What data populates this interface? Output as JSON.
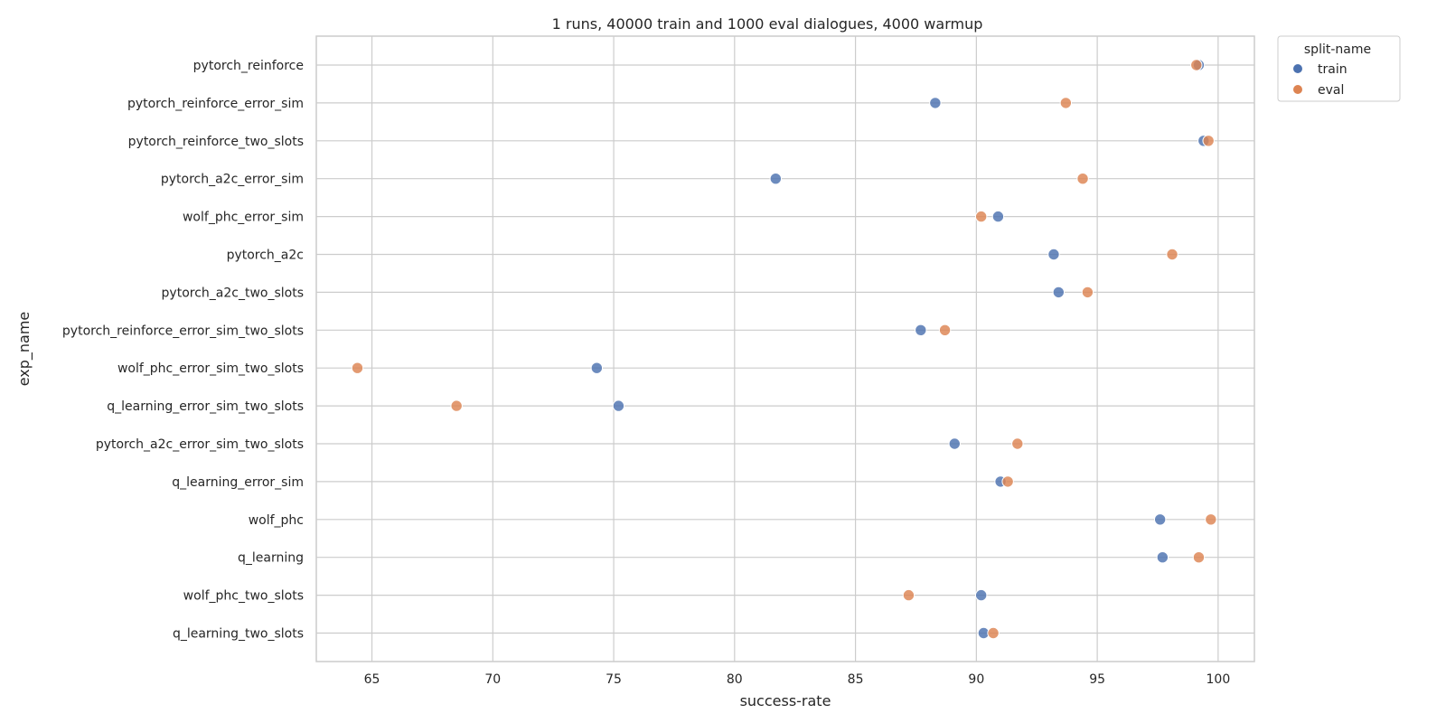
{
  "chart_data": {
    "type": "scatter",
    "title": "1 runs, 40000 train and 1000 eval dialogues, 4000 warmup",
    "xlabel": "success-rate",
    "ylabel": "exp_name",
    "xlim": [
      62.7,
      101.5
    ],
    "xticks": [
      65,
      70,
      75,
      80,
      85,
      90,
      95,
      100
    ],
    "grid": true,
    "legend": {
      "title": "split-name",
      "placement": "outside-top-right"
    },
    "categories": [
      "pytorch_reinforce",
      "pytorch_reinforce_error_sim",
      "pytorch_reinforce_two_slots",
      "pytorch_a2c_error_sim",
      "wolf_phc_error_sim",
      "pytorch_a2c",
      "pytorch_a2c_two_slots",
      "pytorch_reinforce_error_sim_two_slots",
      "wolf_phc_error_sim_two_slots",
      "q_learning_error_sim_two_slots",
      "pytorch_a2c_error_sim_two_slots",
      "q_learning_error_sim",
      "wolf_phc",
      "q_learning",
      "wolf_phc_two_slots",
      "q_learning_two_slots"
    ],
    "series": [
      {
        "name": "train",
        "color": "#4c72b0",
        "values": [
          99.2,
          88.3,
          99.4,
          81.7,
          90.9,
          93.2,
          93.4,
          87.7,
          74.3,
          75.2,
          89.1,
          91.0,
          97.6,
          97.7,
          90.2,
          90.3
        ]
      },
      {
        "name": "eval",
        "color": "#dd8452",
        "values": [
          99.1,
          93.7,
          99.6,
          94.4,
          90.2,
          98.1,
          94.6,
          88.7,
          64.4,
          68.5,
          91.7,
          91.3,
          99.7,
          99.2,
          87.2,
          90.7
        ]
      }
    ]
  }
}
